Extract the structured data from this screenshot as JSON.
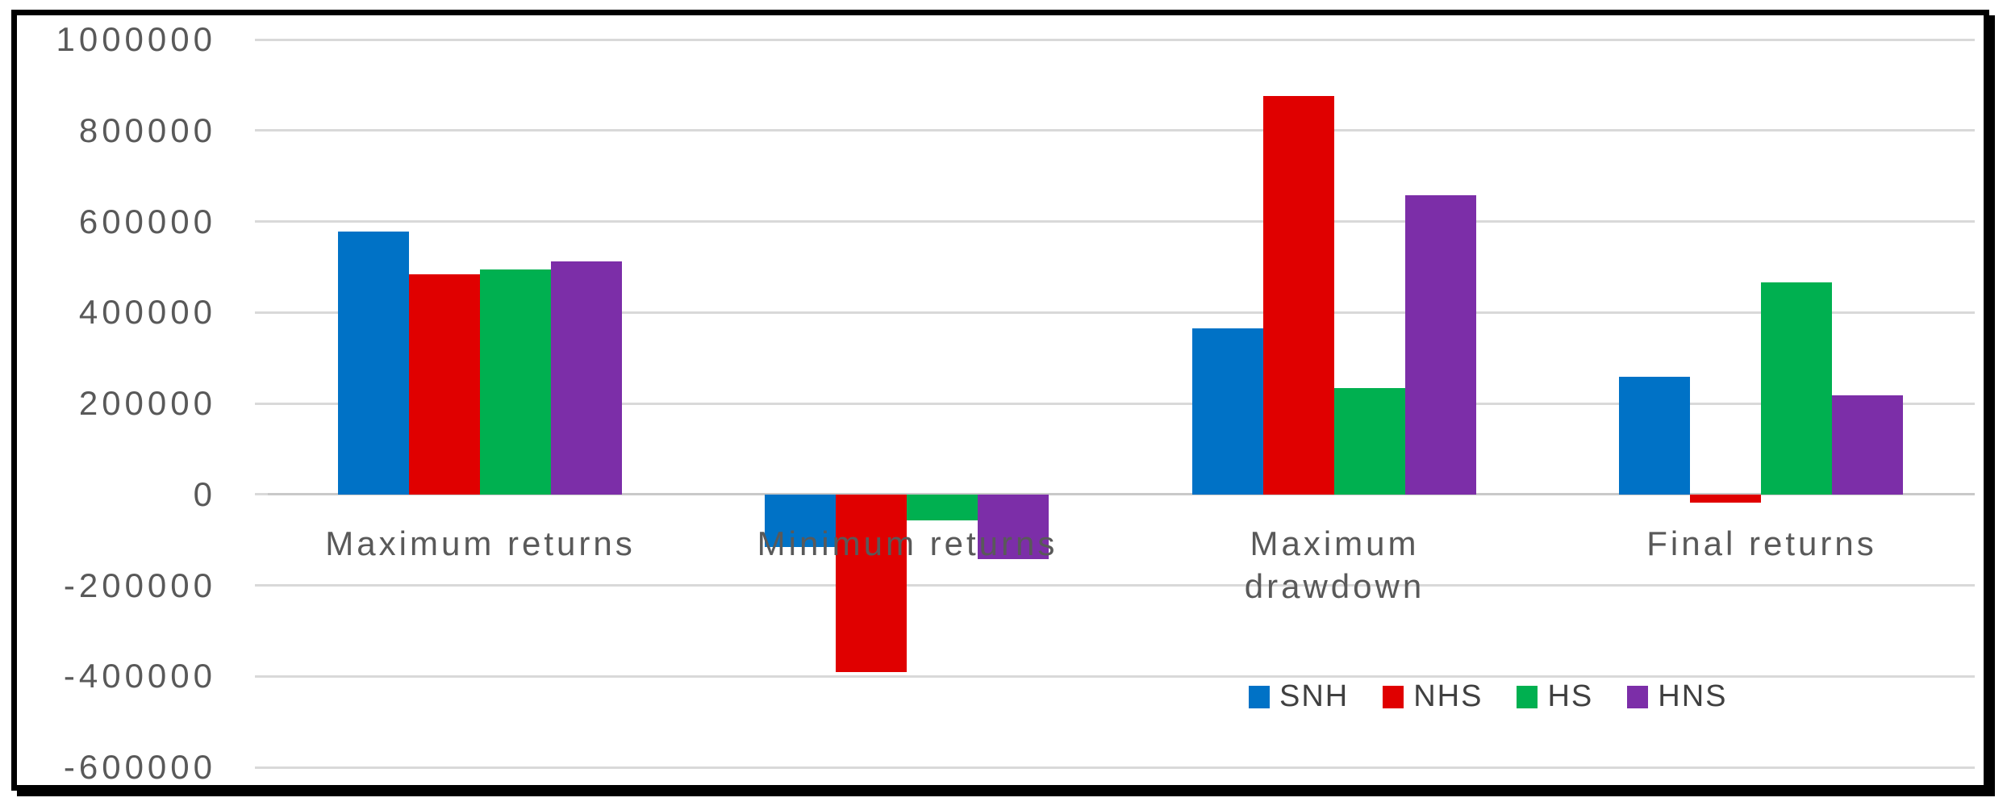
{
  "chart_data": {
    "type": "bar",
    "title": "",
    "xlabel": "",
    "ylabel": "",
    "categories": [
      "Maximum returns",
      "Minimum returns",
      "Maximum drawdown",
      "Final returns"
    ],
    "categories_display": [
      "Maximum returns",
      "Minimum returns",
      "Maximum\ndrawdown",
      "Final returns"
    ],
    "series": [
      {
        "name": "SNH",
        "color": "#0072C6",
        "values": [
          578000,
          -115000,
          365000,
          258000
        ]
      },
      {
        "name": "NHS",
        "color": "#E00000",
        "values": [
          483000,
          -390000,
          875000,
          -18000
        ]
      },
      {
        "name": "HS",
        "color": "#00B050",
        "values": [
          495000,
          -58000,
          233000,
          466000
        ]
      },
      {
        "name": "HNS",
        "color": "#7C2EA8",
        "values": [
          512000,
          -142000,
          657000,
          218000
        ]
      }
    ],
    "ylim": [
      -600000,
      1000000
    ],
    "y_ticks": [
      1000000,
      800000,
      600000,
      400000,
      200000,
      0,
      -200000,
      -400000,
      -600000
    ],
    "y_tick_labels": [
      "1000000",
      "800000",
      "600000",
      "400000",
      "200000",
      "0",
      "-200000",
      "-400000",
      "-600000"
    ],
    "grid": true,
    "legend_position": "bottom-right",
    "legend_labels": [
      "SNH",
      "NHS",
      "HS",
      "HNS"
    ],
    "colors": {
      "gridline": "#D9D9D9",
      "zero_line": "#C9C9C9",
      "tick_text": "#595959",
      "category_text": "#595959",
      "legend_text": "#404040",
      "frame_border": "#000000",
      "background": "#FFFFFF"
    }
  }
}
